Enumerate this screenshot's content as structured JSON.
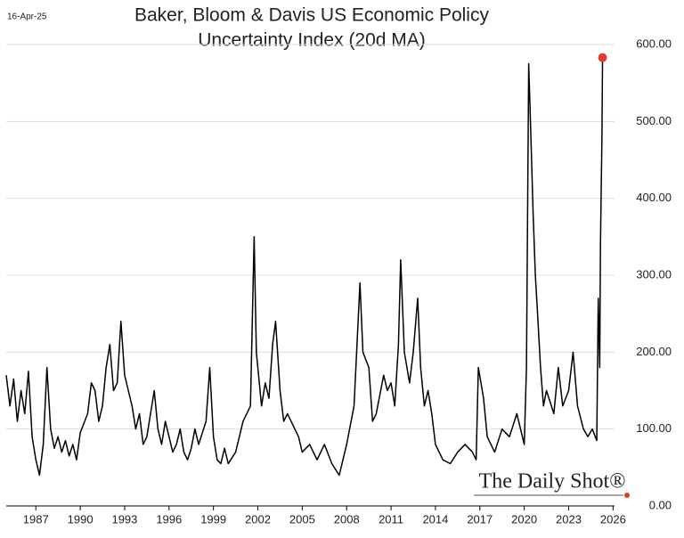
{
  "chart_data": {
    "type": "line",
    "date_label": "16-Apr-25",
    "title": [
      "Baker, Bloom & Davis US Economic Policy",
      "Uncertainty Index (20d MA)"
    ],
    "watermark": "The Daily Shot®",
    "x": [
      1985.0,
      1985.25,
      1985.5,
      1985.75,
      1986.0,
      1986.25,
      1986.5,
      1986.75,
      1987.0,
      1987.25,
      1987.5,
      1987.75,
      1988.0,
      1988.25,
      1988.5,
      1988.75,
      1989.0,
      1989.25,
      1989.5,
      1989.75,
      1990.0,
      1990.5,
      1990.75,
      1991.0,
      1991.25,
      1991.5,
      1991.75,
      1992.0,
      1992.25,
      1992.5,
      1992.75,
      1993.0,
      1993.25,
      1993.5,
      1993.75,
      1994.0,
      1994.25,
      1994.5,
      1994.75,
      1995.0,
      1995.25,
      1995.5,
      1995.75,
      1996.0,
      1996.25,
      1996.5,
      1996.75,
      1997.0,
      1997.25,
      1997.5,
      1997.75,
      1998.0,
      1998.5,
      1998.75,
      1999.0,
      1999.25,
      1999.5,
      1999.75,
      2000.0,
      2000.5,
      2000.75,
      2001.0,
      2001.5,
      2001.75,
      2001.9,
      2002.25,
      2002.5,
      2002.75,
      2003.0,
      2003.2,
      2003.5,
      2003.75,
      2004.0,
      2004.5,
      2004.75,
      2005.0,
      2005.5,
      2006.0,
      2006.5,
      2007.0,
      2007.5,
      2007.75,
      2008.0,
      2008.5,
      2008.9,
      2009.1,
      2009.5,
      2009.75,
      2010.0,
      2010.5,
      2010.75,
      2011.0,
      2011.25,
      2011.5,
      2011.65,
      2011.9,
      2012.25,
      2012.5,
      2012.8,
      2013.0,
      2013.25,
      2013.5,
      2013.75,
      2014.0,
      2014.5,
      2015.0,
      2015.5,
      2016.0,
      2016.5,
      2016.75,
      2016.9,
      2017.25,
      2017.5,
      2017.75,
      2018.0,
      2018.5,
      2019.0,
      2019.5,
      2019.75,
      2020.0,
      2020.15,
      2020.3,
      2020.45,
      2020.6,
      2020.75,
      2020.9,
      2021.1,
      2021.3,
      2021.5,
      2022.0,
      2022.3,
      2022.6,
      2023.0,
      2023.3,
      2023.6,
      2024.0,
      2024.3,
      2024.6,
      2024.9,
      2025.0,
      2025.1,
      2025.15,
      2025.25,
      2025.29
    ],
    "series": [
      {
        "color": "#000000",
        "marker_color": "#e03c31",
        "values": [
          170,
          130,
          165,
          110,
          150,
          120,
          175,
          90,
          60,
          40,
          80,
          180,
          100,
          75,
          90,
          70,
          85,
          65,
          80,
          60,
          95,
          120,
          160,
          150,
          110,
          130,
          180,
          210,
          150,
          160,
          240,
          170,
          150,
          130,
          100,
          120,
          80,
          90,
          120,
          150,
          100,
          80,
          110,
          90,
          70,
          80,
          100,
          70,
          60,
          75,
          100,
          80,
          110,
          180,
          90,
          60,
          55,
          75,
          55,
          70,
          90,
          110,
          130,
          350,
          200,
          130,
          160,
          140,
          210,
          240,
          150,
          110,
          120,
          100,
          90,
          70,
          80,
          60,
          80,
          55,
          40,
          60,
          80,
          130,
          290,
          200,
          180,
          110,
          120,
          170,
          150,
          160,
          130,
          210,
          320,
          200,
          160,
          200,
          270,
          180,
          130,
          150,
          120,
          80,
          60,
          55,
          70,
          80,
          70,
          60,
          180,
          140,
          90,
          80,
          70,
          100,
          90,
          120,
          100,
          80,
          180,
          575,
          480,
          380,
          300,
          250,
          180,
          130,
          150,
          120,
          180,
          130,
          150,
          200,
          130,
          100,
          90,
          100,
          85,
          270,
          180,
          340,
          480,
          583
        ]
      }
    ],
    "xlim": [
      1985,
      2026.1
    ],
    "xticks": [
      1987,
      1990,
      1993,
      1996,
      1999,
      2002,
      2005,
      2008,
      2011,
      2014,
      2017,
      2020,
      2023,
      2026
    ],
    "ylim": [
      0,
      600
    ],
    "yticks": [
      {
        "value": 0,
        "label": "0.00"
      },
      {
        "value": 100,
        "label": "100.00"
      },
      {
        "value": 200,
        "label": "200.00"
      },
      {
        "value": 300,
        "label": "300.00"
      },
      {
        "value": 400,
        "label": "400.00"
      },
      {
        "value": 500,
        "label": "500.00"
      },
      {
        "value": 600,
        "label": "600.00"
      }
    ],
    "grid": true
  }
}
